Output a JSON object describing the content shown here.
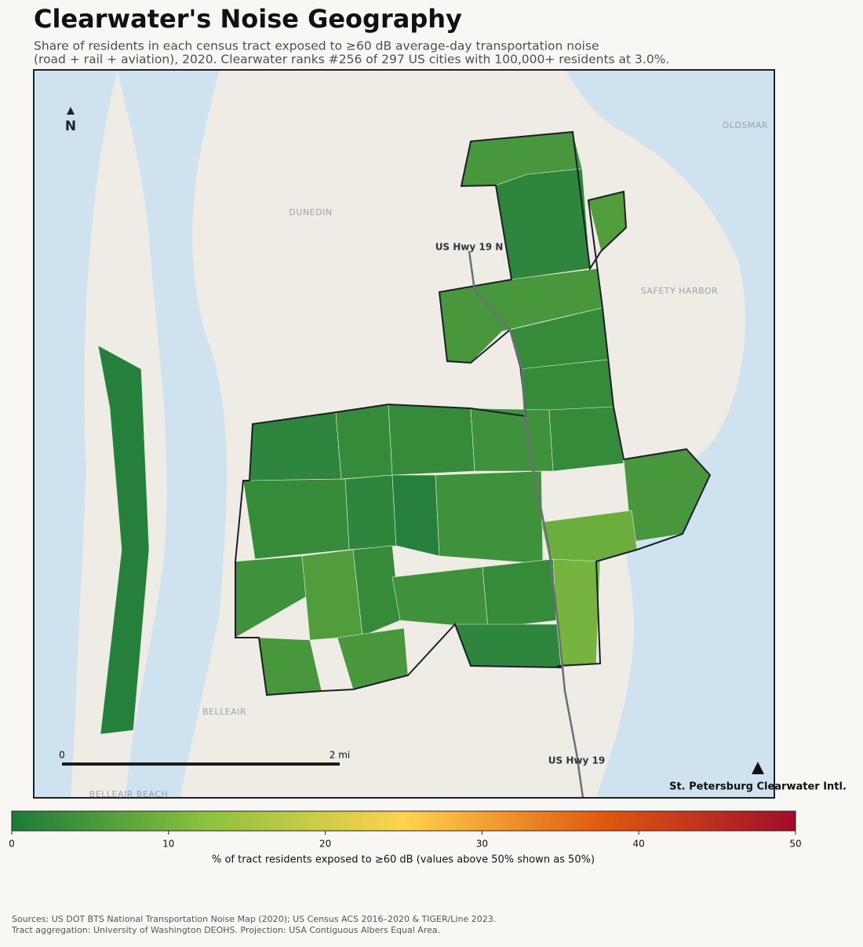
{
  "title": "Clearwater's Noise Geography",
  "subtitle": [
    "Share of residents in each census tract exposed to ≥60 dB average-day transportation noise",
    "(road + rail + aviation), 2020. Clearwater ranks #256 of 297 US cities with 100,000+ residents at 3.0%."
  ],
  "map": {
    "place_labels": [
      "OLDSMAR",
      "DUNEDIN",
      "SAFETY HARBOR",
      "BELLEAIR",
      "BELLEAIR BEACH"
    ],
    "road_labels": [
      "US Hwy 19 N",
      "US Hwy 19"
    ],
    "airport": "St. Petersburg Clearwater Intl.",
    "north": "N",
    "scale_bar": [
      "0",
      "2 mi"
    ],
    "tracts": [
      5,
      2,
      6,
      5,
      3,
      3,
      2,
      3,
      3,
      4,
      3,
      5,
      3,
      2,
      1,
      4,
      9,
      4,
      6,
      3,
      4,
      3,
      10,
      5,
      5,
      2,
      1
    ]
  },
  "colorbar": {
    "label": "% of tract residents exposed to ≥60 dB (values above 50% shown as 50%)",
    "clim": [
      0,
      50
    ],
    "ticks": [
      0,
      10,
      20,
      30,
      40,
      50
    ],
    "colors": [
      "#1b7a3a",
      "#8cc23f",
      "#ffd34d",
      "#e05a10",
      "#a10d2a"
    ]
  },
  "sources": [
    "Sources: US DOT BTS National Transportation Noise Map (2020); US Census ACS 2016–2020 & TIGER/Line 2023.",
    "Tract aggregation: University of Washington DEOHS. Projection: USA Contiguous Albers Equal Area."
  ]
}
